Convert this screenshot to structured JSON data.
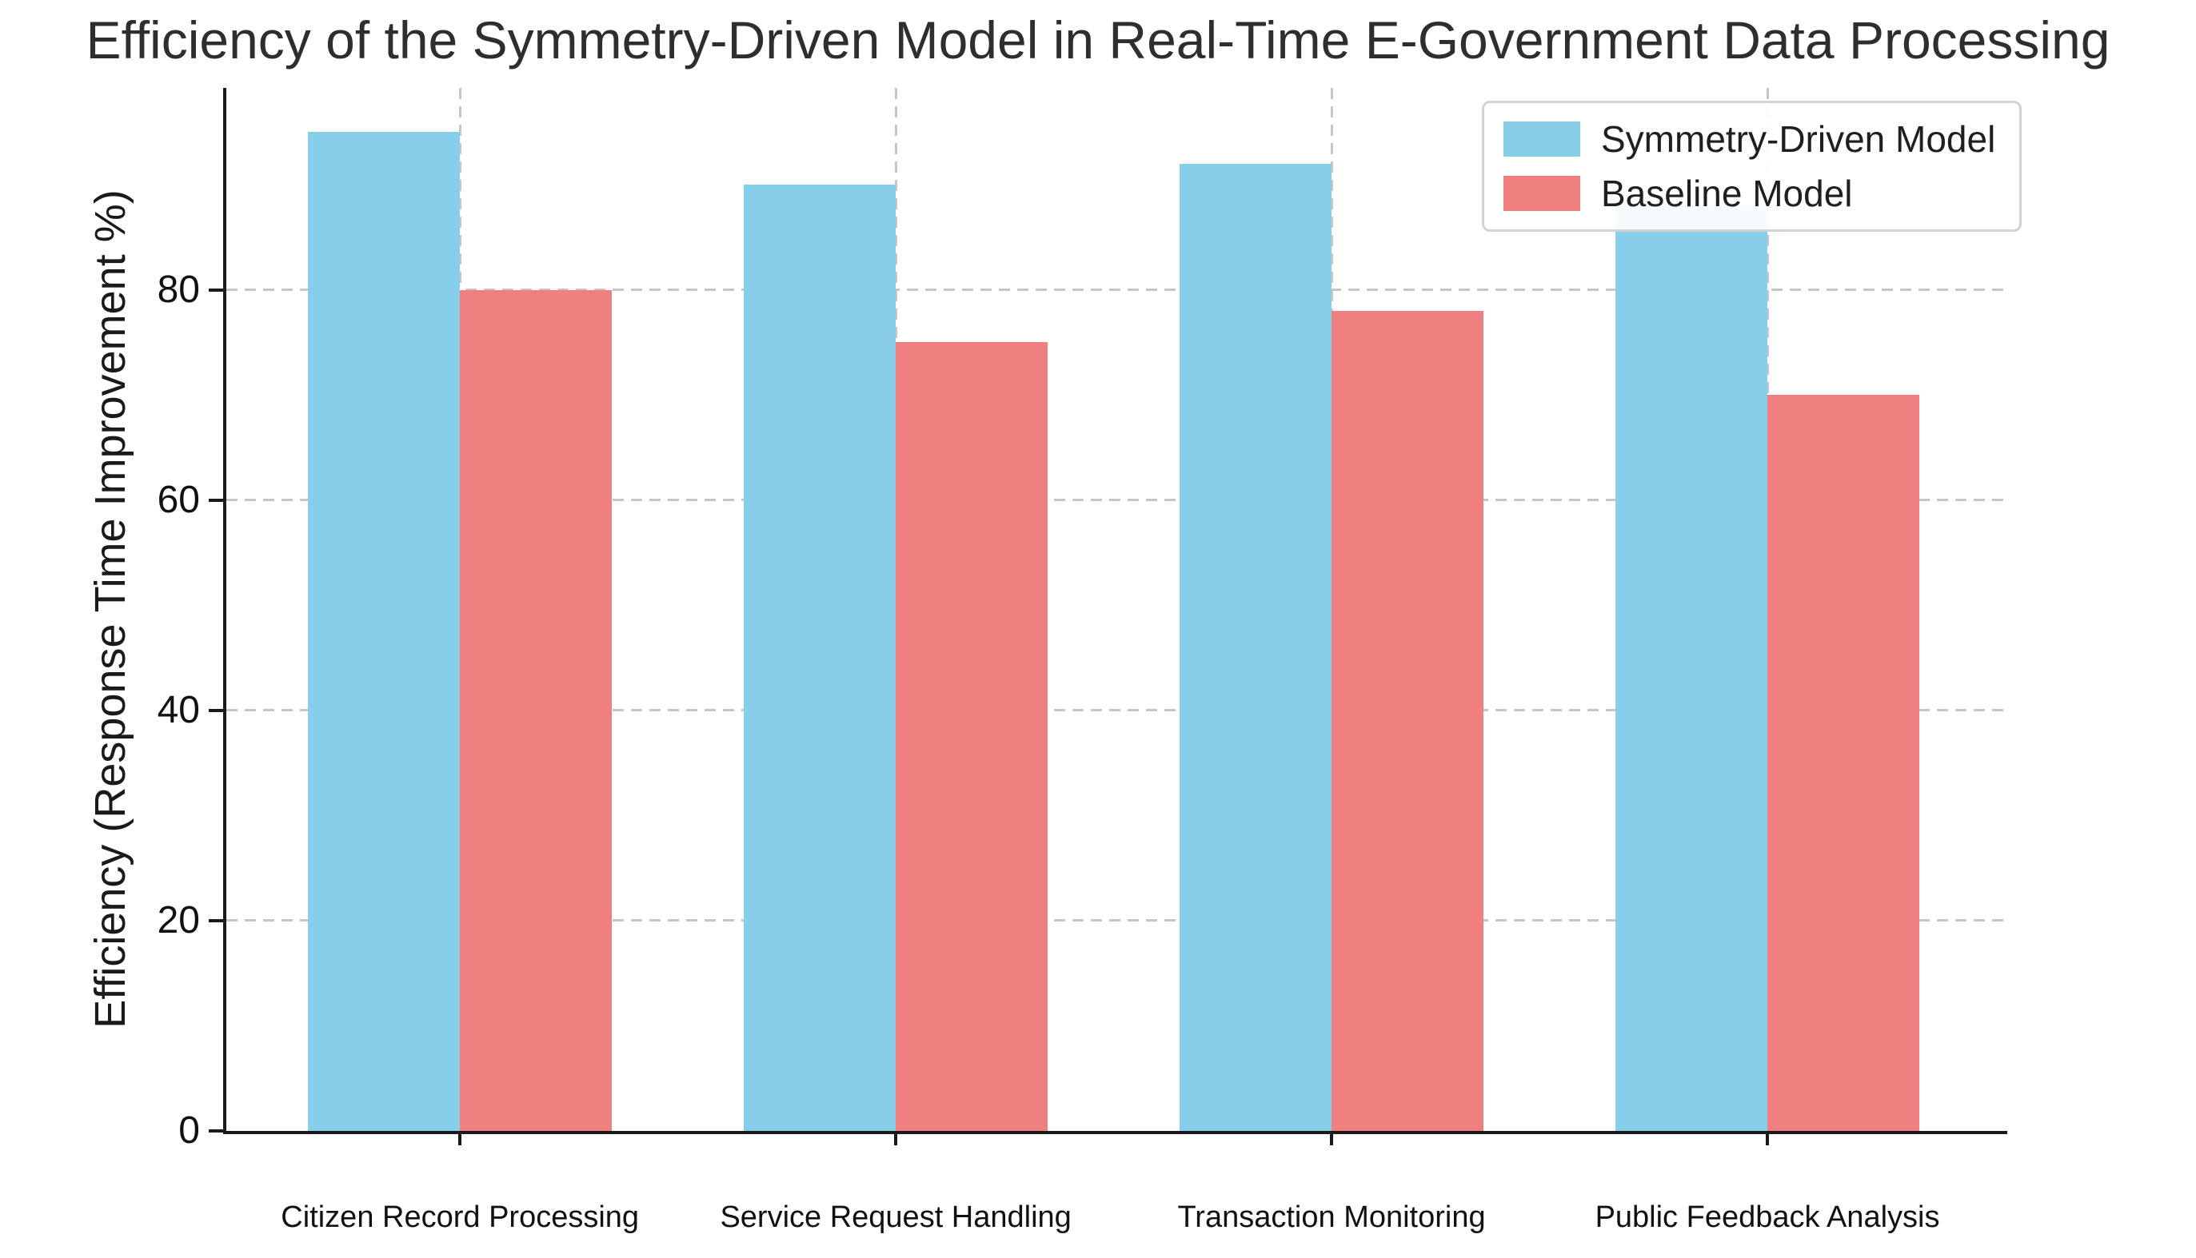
{
  "chart_data": {
    "type": "bar",
    "title": "Efficiency of the Symmetry-Driven Model in Real-Time E-Government Data Processing",
    "xlabel": "",
    "ylabel": "Efficiency (Response Time Improvement %)",
    "categories": [
      "Citizen Record Processing",
      "Service Request Handling",
      "Transaction Monitoring",
      "Public Feedback Analysis"
    ],
    "series": [
      {
        "name": "Symmetry-Driven Model",
        "color": "#87CEEB",
        "values": [
          95,
          90,
          92,
          88
        ]
      },
      {
        "name": "Baseline Model",
        "color": "#F08080",
        "values": [
          80,
          75,
          78,
          70
        ]
      }
    ],
    "yticks": [
      0,
      20,
      40,
      60,
      80
    ],
    "ylim": [
      0,
      99.2
    ],
    "grid": "dashed horizontal and vertical gridlines",
    "legend_position": "upper right",
    "colors": {
      "grid": "#c6c6c6",
      "axis": "#1a1a1a",
      "title_text": "#2e2e2e",
      "background": "#ffffff"
    }
  }
}
